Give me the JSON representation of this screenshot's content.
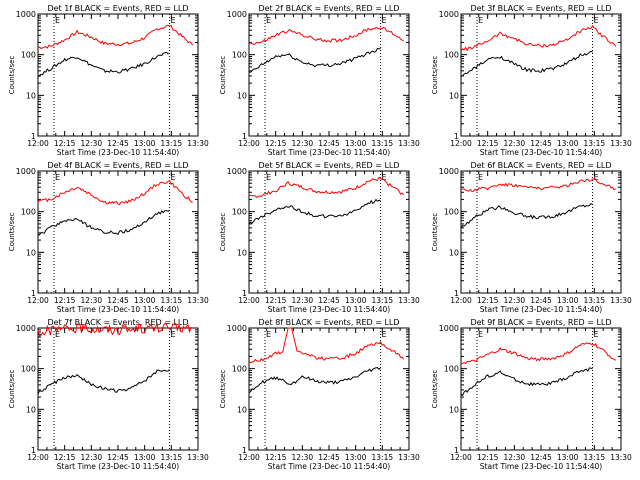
{
  "page": {
    "start_time_label": "Start Time (23-Dec-10 11:54:40)"
  },
  "colors": {
    "events": "#000000",
    "lld": "#ff0000",
    "axis": "#000000"
  },
  "chart_data": [
    {
      "type": "line",
      "title": "Det 1f BLACK = Events, RED = LLD",
      "ylabel": "Counts/sec",
      "xlabel": "Start Time (23-Dec-10 11:54:40)",
      "yscale": "log",
      "ylim": [
        1,
        1000
      ],
      "xlim": [
        "12:00",
        "13:30"
      ],
      "x_ticks": [
        "12:00",
        "12:15",
        "12:30",
        "12:45",
        "13:00",
        "13:15",
        "13:30"
      ],
      "y_ticks": [
        "1",
        "10",
        "100",
        "1000"
      ],
      "marker_times": [
        "12:09",
        "13:14"
      ],
      "marker_label": "E",
      "series": [
        {
          "name": "LLD",
          "x": [
            "12:00",
            "12:07",
            "12:15",
            "12:22",
            "12:30",
            "12:37",
            "12:45",
            "12:52",
            "13:00",
            "13:07",
            "13:14",
            "13:21",
            "13:27"
          ],
          "values": [
            150,
            160,
            230,
            360,
            270,
            190,
            180,
            190,
            260,
            430,
            520,
            280,
            170
          ]
        },
        {
          "name": "Events",
          "x": [
            "12:00",
            "12:07",
            "12:15",
            "12:22",
            "12:30",
            "12:37",
            "12:45",
            "12:52",
            "13:00",
            "13:07",
            "13:14"
          ],
          "values": [
            30,
            45,
            75,
            90,
            55,
            40,
            38,
            44,
            60,
            90,
            110
          ]
        }
      ]
    },
    {
      "type": "line",
      "title": "Det 2f BLACK = Events, RED = LLD",
      "ylabel": "Counts/sec",
      "xlabel": "Start Time (23-Dec-10 11:54:40)",
      "yscale": "log",
      "ylim": [
        1,
        1000
      ],
      "xlim": [
        "12:00",
        "13:30"
      ],
      "x_ticks": [
        "12:00",
        "12:15",
        "12:30",
        "12:45",
        "13:00",
        "13:15",
        "13:30"
      ],
      "y_ticks": [
        "1",
        "10",
        "100",
        "1000"
      ],
      "marker_times": [
        "12:09",
        "13:14"
      ],
      "marker_label": "E",
      "series": [
        {
          "name": "LLD",
          "x": [
            "12:00",
            "12:07",
            "12:15",
            "12:22",
            "12:30",
            "12:37",
            "12:45",
            "12:52",
            "13:00",
            "13:07",
            "13:14",
            "13:21",
            "13:27"
          ],
          "values": [
            190,
            200,
            300,
            390,
            310,
            240,
            220,
            230,
            300,
            420,
            470,
            330,
            220
          ]
        },
        {
          "name": "Events",
          "x": [
            "12:00",
            "12:07",
            "12:15",
            "12:22",
            "12:30",
            "12:37",
            "12:45",
            "12:52",
            "13:00",
            "13:07",
            "13:14"
          ],
          "values": [
            35,
            55,
            90,
            100,
            65,
            55,
            55,
            62,
            80,
            110,
            140
          ]
        }
      ]
    },
    {
      "type": "line",
      "title": "Det 3f BLACK = Events, RED = LLD",
      "ylabel": "Counts/sec",
      "xlabel": "Start Time (23-Dec-10 11:54:40)",
      "yscale": "log",
      "ylim": [
        1,
        1000
      ],
      "xlim": [
        "12:00",
        "13:30"
      ],
      "x_ticks": [
        "12:00",
        "12:15",
        "12:30",
        "12:45",
        "13:00",
        "13:15",
        "13:30"
      ],
      "y_ticks": [
        "1",
        "10",
        "100",
        "1000"
      ],
      "marker_times": [
        "12:09",
        "13:14"
      ],
      "marker_label": "E",
      "series": [
        {
          "name": "LLD",
          "x": [
            "12:00",
            "12:07",
            "12:15",
            "12:22",
            "12:30",
            "12:37",
            "12:45",
            "12:52",
            "13:00",
            "13:07",
            "13:14",
            "13:21",
            "13:27"
          ],
          "values": [
            130,
            150,
            220,
            330,
            250,
            180,
            165,
            175,
            240,
            380,
            470,
            260,
            160
          ]
        },
        {
          "name": "Events",
          "x": [
            "12:00",
            "12:07",
            "12:15",
            "12:22",
            "12:30",
            "12:37",
            "12:45",
            "12:52",
            "13:00",
            "13:07",
            "13:14"
          ],
          "values": [
            28,
            45,
            75,
            90,
            58,
            42,
            40,
            46,
            62,
            95,
            115
          ]
        }
      ]
    },
    {
      "type": "line",
      "title": "Det 4f BLACK = Events, RED = LLD",
      "ylabel": "Counts/sec",
      "xlabel": "Start Time (23-Dec-10 11:54:40)",
      "yscale": "log",
      "ylim": [
        1,
        1000
      ],
      "xlim": [
        "12:00",
        "13:30"
      ],
      "x_ticks": [
        "12:00",
        "12:15",
        "12:30",
        "12:45",
        "13:00",
        "13:15",
        "13:30"
      ],
      "y_ticks": [
        "1",
        "10",
        "100",
        "1000"
      ],
      "marker_times": [
        "12:09",
        "13:14"
      ],
      "marker_label": "E",
      "series": [
        {
          "name": "LLD",
          "x": [
            "12:00",
            "12:07",
            "12:15",
            "12:22",
            "12:30",
            "12:37",
            "12:45",
            "12:52",
            "13:00",
            "13:07",
            "13:14",
            "13:21",
            "13:27"
          ],
          "values": [
            180,
            200,
            300,
            400,
            260,
            170,
            160,
            180,
            280,
            480,
            550,
            280,
            170
          ]
        },
        {
          "name": "Events",
          "x": [
            "12:00",
            "12:07",
            "12:15",
            "12:22",
            "12:30",
            "12:37",
            "12:45",
            "12:52",
            "13:00",
            "13:07",
            "13:14"
          ],
          "values": [
            25,
            40,
            60,
            65,
            40,
            32,
            30,
            35,
            55,
            90,
            110
          ]
        }
      ]
    },
    {
      "type": "line",
      "title": "Det 5f BLACK = Events, RED = LLD",
      "ylabel": "Counts/sec",
      "xlabel": "Start Time (23-Dec-10 11:54:40)",
      "yscale": "log",
      "ylim": [
        1,
        1000
      ],
      "xlim": [
        "12:00",
        "13:30"
      ],
      "x_ticks": [
        "12:00",
        "12:15",
        "12:30",
        "12:45",
        "13:00",
        "13:15",
        "13:30"
      ],
      "y_ticks": [
        "1",
        "10",
        "100",
        "1000"
      ],
      "marker_times": [
        "12:09",
        "13:14"
      ],
      "marker_label": "E",
      "series": [
        {
          "name": "LLD",
          "x": [
            "12:00",
            "12:07",
            "12:15",
            "12:22",
            "12:30",
            "12:37",
            "12:45",
            "12:52",
            "13:00",
            "13:07",
            "13:14",
            "13:21",
            "13:27"
          ],
          "values": [
            230,
            250,
            330,
            500,
            400,
            320,
            300,
            310,
            380,
            560,
            650,
            400,
            260
          ]
        },
        {
          "name": "Events",
          "x": [
            "12:00",
            "12:07",
            "12:15",
            "12:22",
            "12:30",
            "12:37",
            "12:45",
            "12:52",
            "13:00",
            "13:07",
            "13:14"
          ],
          "values": [
            50,
            75,
            110,
            140,
            100,
            80,
            75,
            80,
            105,
            165,
            190
          ]
        }
      ]
    },
    {
      "type": "line",
      "title": "Det 6f BLACK = Events, RED = LLD",
      "ylabel": "Counts/sec",
      "xlabel": "Start Time (23-Dec-10 11:54:40)",
      "yscale": "log",
      "ylim": [
        1,
        1000
      ],
      "xlim": [
        "12:00",
        "13:30"
      ],
      "x_ticks": [
        "12:00",
        "12:15",
        "12:30",
        "12:45",
        "13:00",
        "13:15",
        "13:30"
      ],
      "y_ticks": [
        "1",
        "10",
        "100",
        "1000"
      ],
      "marker_times": [
        "12:09",
        "13:14"
      ],
      "marker_label": "E",
      "series": [
        {
          "name": "LLD",
          "x": [
            "12:00",
            "12:07",
            "12:15",
            "12:22",
            "12:30",
            "12:37",
            "12:45",
            "12:52",
            "13:00",
            "13:07",
            "13:14",
            "13:21",
            "13:27"
          ],
          "values": [
            330,
            340,
            380,
            480,
            450,
            400,
            380,
            390,
            440,
            570,
            620,
            470,
            360
          ]
        },
        {
          "name": "Events",
          "x": [
            "12:00",
            "12:07",
            "12:15",
            "12:22",
            "12:30",
            "12:37",
            "12:45",
            "12:52",
            "13:00",
            "13:07",
            "13:14"
          ],
          "values": [
            40,
            70,
            110,
            130,
            95,
            75,
            72,
            78,
            100,
            135,
            150
          ]
        }
      ]
    },
    {
      "type": "line",
      "title": "Det 7f BLACK = Events, RED = LLD",
      "ylabel": "Counts/sec",
      "xlabel": "Start Time (23-Dec-10 11:54:40)",
      "yscale": "log",
      "ylim": [
        1,
        1000
      ],
      "xlim": [
        "12:00",
        "13:30"
      ],
      "x_ticks": [
        "12:00",
        "12:15",
        "12:30",
        "12:45",
        "13:00",
        "13:15",
        "13:30"
      ],
      "y_ticks": [
        "1",
        "10",
        "100",
        "1000"
      ],
      "marker_times": [
        "12:09",
        "13:14"
      ],
      "marker_label": "E",
      "series": [
        {
          "name": "LLD",
          "x": [
            "12:00",
            "12:07",
            "12:15",
            "12:22",
            "12:30",
            "12:37",
            "12:45",
            "12:52",
            "13:00",
            "13:07",
            "13:14",
            "13:21",
            "13:27"
          ],
          "values": [
            800,
            850,
            950,
            1000,
            980,
            950,
            900,
            930,
            980,
            1000,
            1000,
            1000,
            1000
          ]
        },
        {
          "name": "Events",
          "x": [
            "12:00",
            "12:07",
            "12:15",
            "12:22",
            "12:30",
            "12:37",
            "12:45",
            "12:52",
            "13:00",
            "13:07",
            "13:14"
          ],
          "values": [
            25,
            40,
            60,
            65,
            42,
            32,
            28,
            32,
            50,
            85,
            95
          ]
        }
      ]
    },
    {
      "type": "line",
      "title": "Det 8f BLACK = Events, RED = LLD",
      "ylabel": "Counts/sec",
      "xlabel": "Start Time (23-Dec-10 11:54:40)",
      "yscale": "log",
      "ylim": [
        1,
        1000
      ],
      "xlim": [
        "12:00",
        "13:30"
      ],
      "x_ticks": [
        "12:00",
        "12:15",
        "12:30",
        "12:45",
        "13:00",
        "13:15",
        "13:30"
      ],
      "y_ticks": [
        "1",
        "10",
        "100",
        "1000"
      ],
      "marker_times": [
        "12:09",
        "13:14"
      ],
      "marker_label": "E",
      "series": [
        {
          "name": "LLD",
          "x": [
            "12:00",
            "12:07",
            "12:15",
            "12:19",
            "12:22",
            "12:24",
            "12:27",
            "12:30",
            "12:37",
            "12:45",
            "12:52",
            "13:00",
            "13:07",
            "13:14",
            "13:21",
            "13:27"
          ],
          "values": [
            150,
            160,
            240,
            260,
            1000,
            1000,
            270,
            250,
            190,
            170,
            180,
            240,
            360,
            420,
            280,
            170
          ]
        },
        {
          "name": "Events",
          "x": [
            "12:00",
            "12:07",
            "12:15",
            "12:19",
            "12:22",
            "12:27",
            "12:30",
            "12:37",
            "12:45",
            "12:52",
            "13:00",
            "13:07",
            "13:14"
          ],
          "values": [
            28,
            45,
            60,
            55,
            40,
            50,
            65,
            50,
            45,
            48,
            62,
            90,
            105
          ]
        }
      ]
    },
    {
      "type": "line",
      "title": "Det 9f BLACK = Events, RED = LLD",
      "ylabel": "Counts/sec",
      "xlabel": "Start Time (23-Dec-10 11:54:40)",
      "yscale": "log",
      "ylim": [
        1,
        1000
      ],
      "xlim": [
        "12:00",
        "13:30"
      ],
      "x_ticks": [
        "12:00",
        "12:15",
        "12:30",
        "12:45",
        "13:00",
        "13:15",
        "13:30"
      ],
      "y_ticks": [
        "1",
        "10",
        "100",
        "1000"
      ],
      "marker_times": [
        "12:09",
        "13:14"
      ],
      "marker_label": "E",
      "series": [
        {
          "name": "LLD",
          "x": [
            "12:00",
            "12:07",
            "12:15",
            "12:22",
            "12:30",
            "12:37",
            "12:45",
            "12:52",
            "13:00",
            "13:07",
            "13:14",
            "13:21",
            "13:27"
          ],
          "values": [
            140,
            150,
            220,
            300,
            240,
            180,
            170,
            180,
            240,
            380,
            430,
            260,
            160
          ]
        },
        {
          "name": "Events",
          "x": [
            "12:00",
            "12:07",
            "12:15",
            "12:22",
            "12:30",
            "12:37",
            "12:45",
            "12:52",
            "13:00",
            "13:07",
            "13:14"
          ],
          "values": [
            22,
            38,
            65,
            80,
            55,
            42,
            40,
            45,
            60,
            88,
            100
          ]
        }
      ]
    }
  ]
}
